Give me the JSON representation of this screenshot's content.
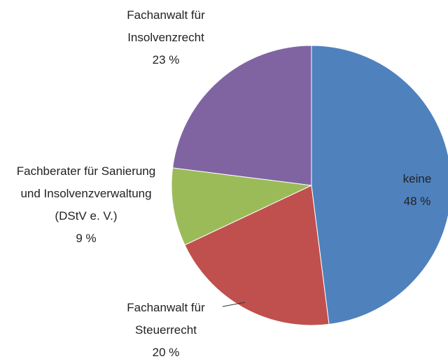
{
  "chart_data": {
    "type": "pie",
    "categories": [
      "keine",
      "Fachanwalt für Steuerrecht",
      "Fachberater für Sanierung und Insolvenzverwaltung (DStV e. V.)",
      "Fachanwalt für Insolvenzrecht"
    ],
    "values": [
      48,
      20,
      9,
      23
    ],
    "value_labels": [
      "48 %",
      "20 %",
      "9 %",
      "23 %"
    ],
    "colors": [
      "#4f81bd",
      "#c0504d",
      "#9bbb59",
      "#8064a2"
    ]
  }
}
